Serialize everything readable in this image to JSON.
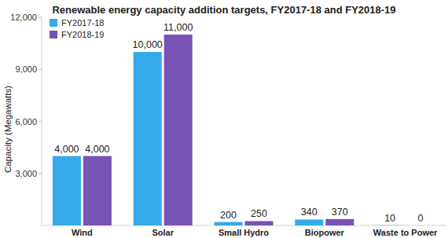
{
  "chart_data": {
    "type": "bar",
    "title": "Renewable energy capacity addition targets, FY2017-18 and FY2018-19",
    "y_label": "Capacity (Megawatts)",
    "categories": [
      "Wind",
      "Solar",
      "Small Hydro",
      "Biopower",
      "Waste to Power"
    ],
    "series": [
      {
        "name": "FY2017-18",
        "color": "#35a9ea",
        "values": [
          4000,
          10000,
          200,
          340,
          10
        ],
        "value_labels": [
          "4,000",
          "10,000",
          "200",
          "340",
          "10"
        ]
      },
      {
        "name": "FY2018-19",
        "color": "#7653b5",
        "values": [
          4000,
          11000,
          250,
          370,
          0
        ],
        "value_labels": [
          "4,000",
          "11,000",
          "250",
          "370",
          "0"
        ]
      }
    ],
    "ylim": [
      0,
      12000
    ],
    "yticks": [
      {
        "value": 3000,
        "label": "3,000"
      },
      {
        "value": 6000,
        "label": "6,000"
      },
      {
        "value": 9000,
        "label": "9,000"
      },
      {
        "value": 12000,
        "label": "12,000"
      }
    ],
    "grid": false,
    "legend": "top-left",
    "data_labels": true
  }
}
